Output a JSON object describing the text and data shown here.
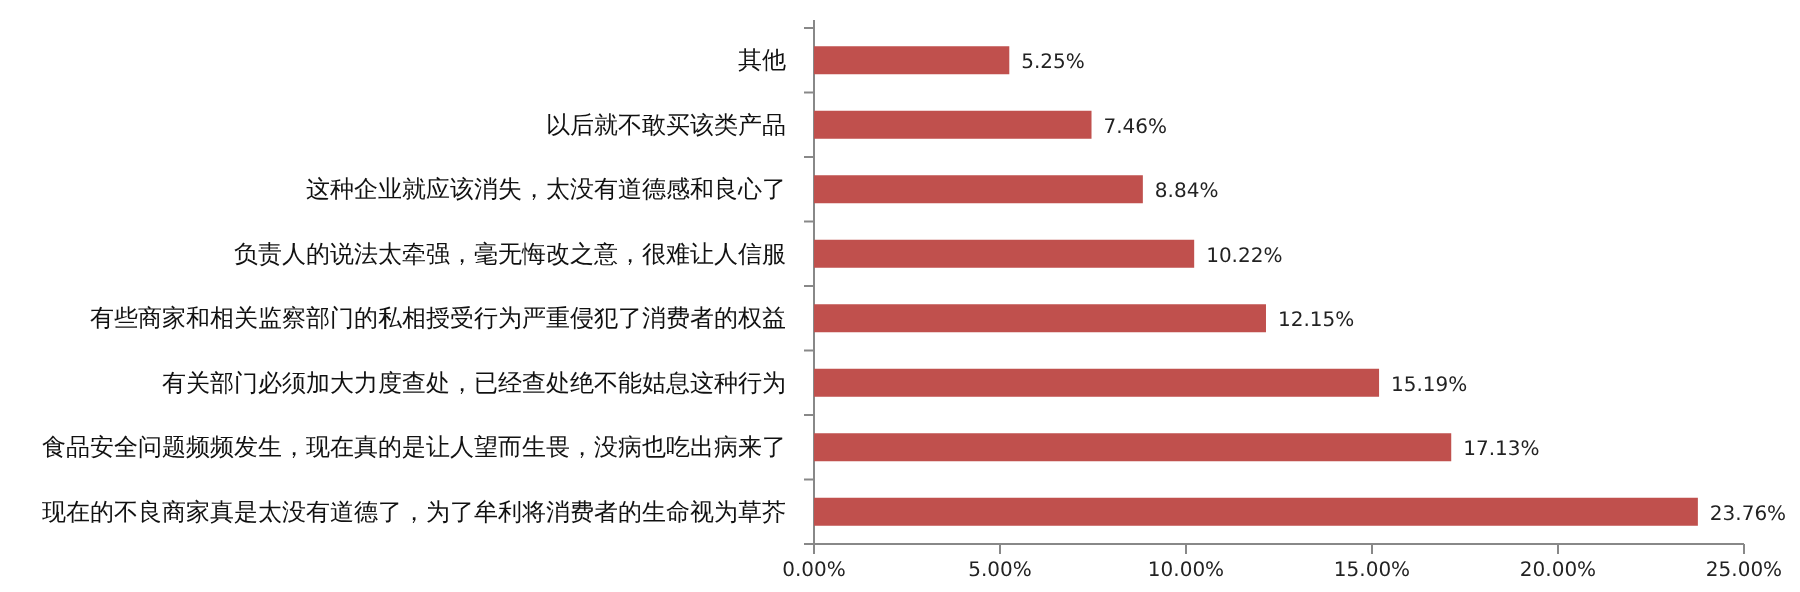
{
  "chart_data": {
    "type": "bar",
    "orientation": "horizontal",
    "categories": [
      "其他",
      "以后就不敢买该类产品",
      "这种企业就应该消失，太没有道德感和良心了",
      "负责人的说法太牵强，毫无悔改之意，很难让人信服",
      "有些商家和相关监察部门的私相授受行为严重侵犯了消费者的权益",
      "有关部门必须加大力度查处，已经查处绝不能姑息这种行为",
      "食品安全问题频频发生，现在真的是让人望而生畏，没病也吃出病来了",
      "现在的不良商家真是太没有道德了，为了牟利将消费者的生命视为草芥"
    ],
    "values": [
      5.25,
      7.46,
      8.84,
      10.22,
      12.15,
      15.19,
      17.13,
      23.76
    ],
    "value_labels": [
      "5.25%",
      "7.46%",
      "8.84%",
      "10.22%",
      "12.15%",
      "15.19%",
      "17.13%",
      "23.76%"
    ],
    "color": "#c0504d",
    "xlim": [
      0,
      25
    ],
    "xticks": [
      {
        "value": 0,
        "label": "0.00%"
      },
      {
        "value": 5,
        "label": "5.00%"
      },
      {
        "value": 10,
        "label": "10.00%"
      },
      {
        "value": 15,
        "label": "15.00%"
      },
      {
        "value": 20,
        "label": "20.00%"
      },
      {
        "value": 25,
        "label": "25.00%"
      }
    ],
    "grid": false
  }
}
